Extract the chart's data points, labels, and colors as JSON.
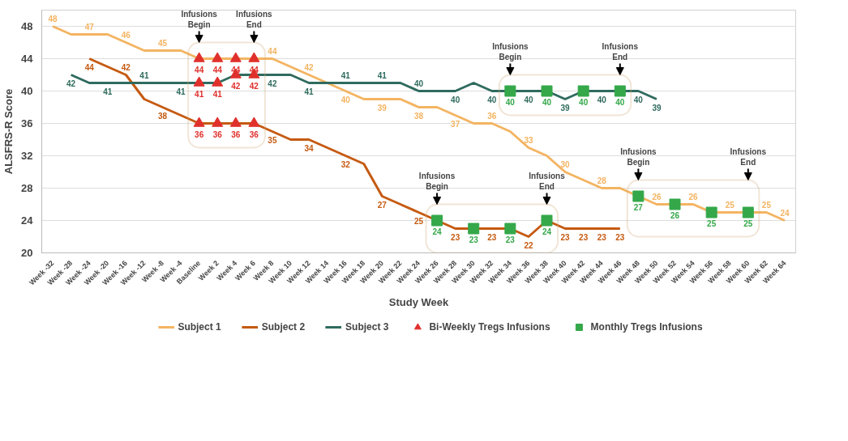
{
  "chart_data": {
    "type": "line",
    "xlabel": "Study Week",
    "ylabel": "ALSFRS-R Score",
    "categories": [
      "Week -32",
      "Week -28",
      "Week -24",
      "Week -20",
      "Week -16",
      "Week -12",
      "Week -8",
      "Week -4",
      "Baseline",
      "Week 2",
      "Week 4",
      "Week 6",
      "Week 8",
      "Week 10",
      "Week 12",
      "Week 14",
      "Week 16",
      "Week 18",
      "Week 20",
      "Week 22",
      "Week 24",
      "Week 26",
      "Week 28",
      "Week 30",
      "Week 32",
      "Week 34",
      "Week 36",
      "Week 38",
      "Week 40",
      "Week 42",
      "Week 44",
      "Week 46",
      "Week 48",
      "Week 50",
      "Week 52",
      "Week 54",
      "Week 56",
      "Week 58",
      "Week 60",
      "Week 62",
      "Week 64"
    ],
    "ylim": [
      20,
      50
    ],
    "yticks": [
      20,
      24,
      28,
      32,
      36,
      40,
      44,
      48
    ],
    "grid": "y",
    "legend": "bottom",
    "line_style": "solid",
    "series": [
      {
        "name": "Subject 1",
        "color": "#f4b462",
        "values": [
          48,
          47,
          47,
          47,
          46,
          45,
          45,
          45,
          44,
          44,
          44,
          44,
          44,
          43,
          42,
          41,
          40,
          39,
          39,
          39,
          38,
          38,
          37,
          36,
          36,
          35,
          33,
          32,
          30,
          29,
          28,
          28,
          27,
          26,
          26,
          26,
          25,
          25,
          25,
          25,
          24
        ],
        "value_labels": [
          "48",
          null,
          "47",
          null,
          "46",
          null,
          "45",
          null,
          null,
          null,
          null,
          null,
          "44",
          null,
          "42",
          null,
          "40",
          null,
          "39",
          null,
          "38",
          null,
          "37",
          null,
          "36",
          null,
          "33",
          null,
          "30",
          null,
          "28",
          null,
          null,
          "26",
          null,
          "26",
          null,
          "25",
          null,
          "25",
          "24"
        ]
      },
      {
        "name": "Subject 2",
        "color": "#c55a11",
        "values": [
          null,
          null,
          44,
          43,
          42,
          39,
          38,
          37,
          36,
          36,
          36,
          36,
          35,
          34,
          34,
          33,
          32,
          31,
          27,
          26,
          25,
          24,
          23,
          23,
          23,
          23,
          22,
          24,
          23,
          23,
          23,
          23,
          null,
          null,
          null,
          null,
          null,
          null,
          null,
          null,
          null
        ],
        "value_labels": [
          null,
          null,
          "44",
          null,
          "42",
          null,
          "38",
          null,
          null,
          null,
          null,
          null,
          "35",
          null,
          "34",
          null,
          "32",
          null,
          "27",
          null,
          "25",
          null,
          "23",
          null,
          "23",
          null,
          "22",
          null,
          "23",
          "23",
          "23",
          "23",
          null,
          null,
          null,
          null,
          null,
          null,
          null,
          null,
          null
        ]
      },
      {
        "name": "Subject 3",
        "color": "#2f6b5e",
        "values": [
          null,
          42,
          41,
          41,
          41,
          41,
          41,
          41,
          41,
          41,
          42,
          42,
          42,
          42,
          41,
          41,
          41,
          41,
          41,
          41,
          40,
          40,
          40,
          41,
          40,
          40,
          40,
          40,
          39,
          40,
          40,
          40,
          40,
          39,
          null,
          null,
          null,
          null,
          null,
          null,
          null
        ],
        "value_labels": [
          null,
          "42",
          null,
          "41",
          null,
          "41",
          null,
          "41",
          null,
          null,
          null,
          null,
          "42",
          null,
          "41",
          null,
          "41",
          null,
          "41",
          null,
          "40",
          null,
          "40",
          null,
          "40",
          null,
          "40",
          null,
          "39",
          null,
          "40",
          null,
          "40",
          "39",
          null,
          null,
          null,
          null,
          null,
          null,
          null
        ]
      },
      {
        "name": "Bi-Weekly Tregs Infusions",
        "type": "scatter",
        "marker": "triangle",
        "color": "#e0302c",
        "x": [
          "Baseline",
          "Week 2",
          "Week 4",
          "Week 6",
          "Baseline",
          "Week 2",
          "Week 4",
          "Week 6",
          "Baseline",
          "Week 2",
          "Week 4",
          "Week 6"
        ],
        "values": [
          44,
          44,
          44,
          44,
          41,
          41,
          42,
          42,
          36,
          36,
          36,
          36
        ],
        "value_labels": [
          "44",
          "44",
          "44",
          "44",
          "41",
          "41",
          "42",
          "42",
          "36",
          "36",
          "36",
          "36"
        ]
      },
      {
        "name": "Monthly Tregs Infusions",
        "type": "scatter",
        "marker": "square",
        "color": "#35a84a",
        "x": [
          "Week 26",
          "Week 30",
          "Week 34",
          "Week 38"
        ],
        "values": [
          24,
          23,
          23,
          24
        ],
        "value_labels": [
          "24",
          "23",
          "23",
          "24"
        ]
      },
      {
        "type": "scatter",
        "marker": "square",
        "color": "#35a84a",
        "x": [
          "Week 34",
          "Week 38",
          "Week 42",
          "Week 46"
        ],
        "values": [
          40,
          40,
          40,
          40
        ],
        "value_labels": [
          "40",
          "40",
          "40",
          "40"
        ]
      },
      {
        "type": "scatter",
        "marker": "square",
        "color": "#35a84a",
        "x": [
          "Week 48",
          "Week 52",
          "Week 56",
          "Week 60"
        ],
        "values": [
          27,
          26,
          25,
          25
        ],
        "value_labels": [
          "27",
          "26",
          "25",
          "25"
        ]
      }
    ],
    "annotations": [
      "Infusions Begin",
      "Infusions End",
      "Infusions Begin",
      "Infusions End",
      "Infusions Begin",
      "Infusions End",
      "Infusions Begin",
      "Infusions End"
    ]
  }
}
